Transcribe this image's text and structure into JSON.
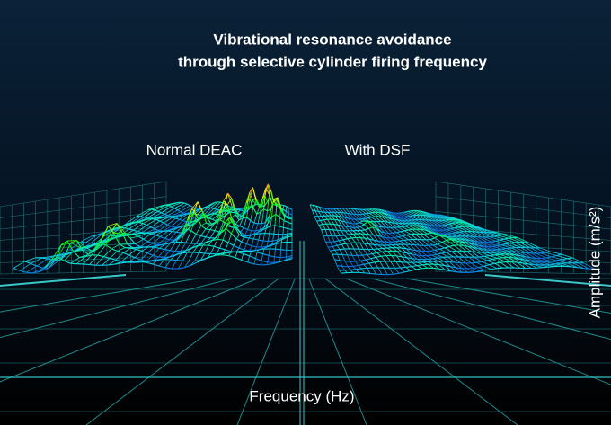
{
  "title": {
    "line1": "Vibrational resonance avoidance",
    "line2": "through selective cylinder firing frequency"
  },
  "panels": [
    {
      "label": "Normal DEAC"
    },
    {
      "label": "With DSF"
    }
  ],
  "axes": {
    "x_label": "Frequency (Hz)",
    "y_label": "Amplitude (m/s²)"
  }
}
